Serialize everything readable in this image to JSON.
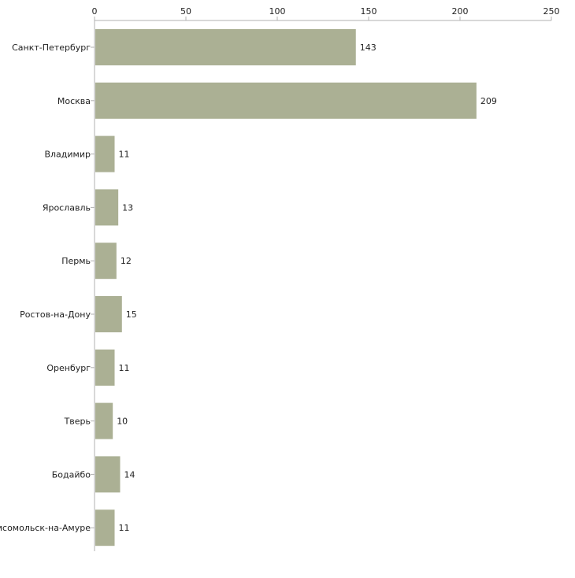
{
  "chart_data": {
    "type": "bar",
    "orientation": "horizontal",
    "title": "",
    "xlabel": "",
    "ylabel": "",
    "categories": [
      "Санкт-Петербург",
      "Москва",
      "Владимир",
      "Ярославль",
      "Пермь",
      "Ростов-на-Дону",
      "Оренбург",
      "Тверь",
      "Бодайбо",
      "Комсомольск-на-Амуре"
    ],
    "values": [
      143,
      209,
      11,
      13,
      12,
      15,
      11,
      10,
      14,
      11
    ],
    "xlim": [
      0,
      250
    ],
    "xticks": [
      0,
      50,
      100,
      150,
      200,
      250
    ],
    "axis_position": "top",
    "grid": false,
    "bar_color": "#abb094",
    "axis_color": "#b0b0b0"
  }
}
